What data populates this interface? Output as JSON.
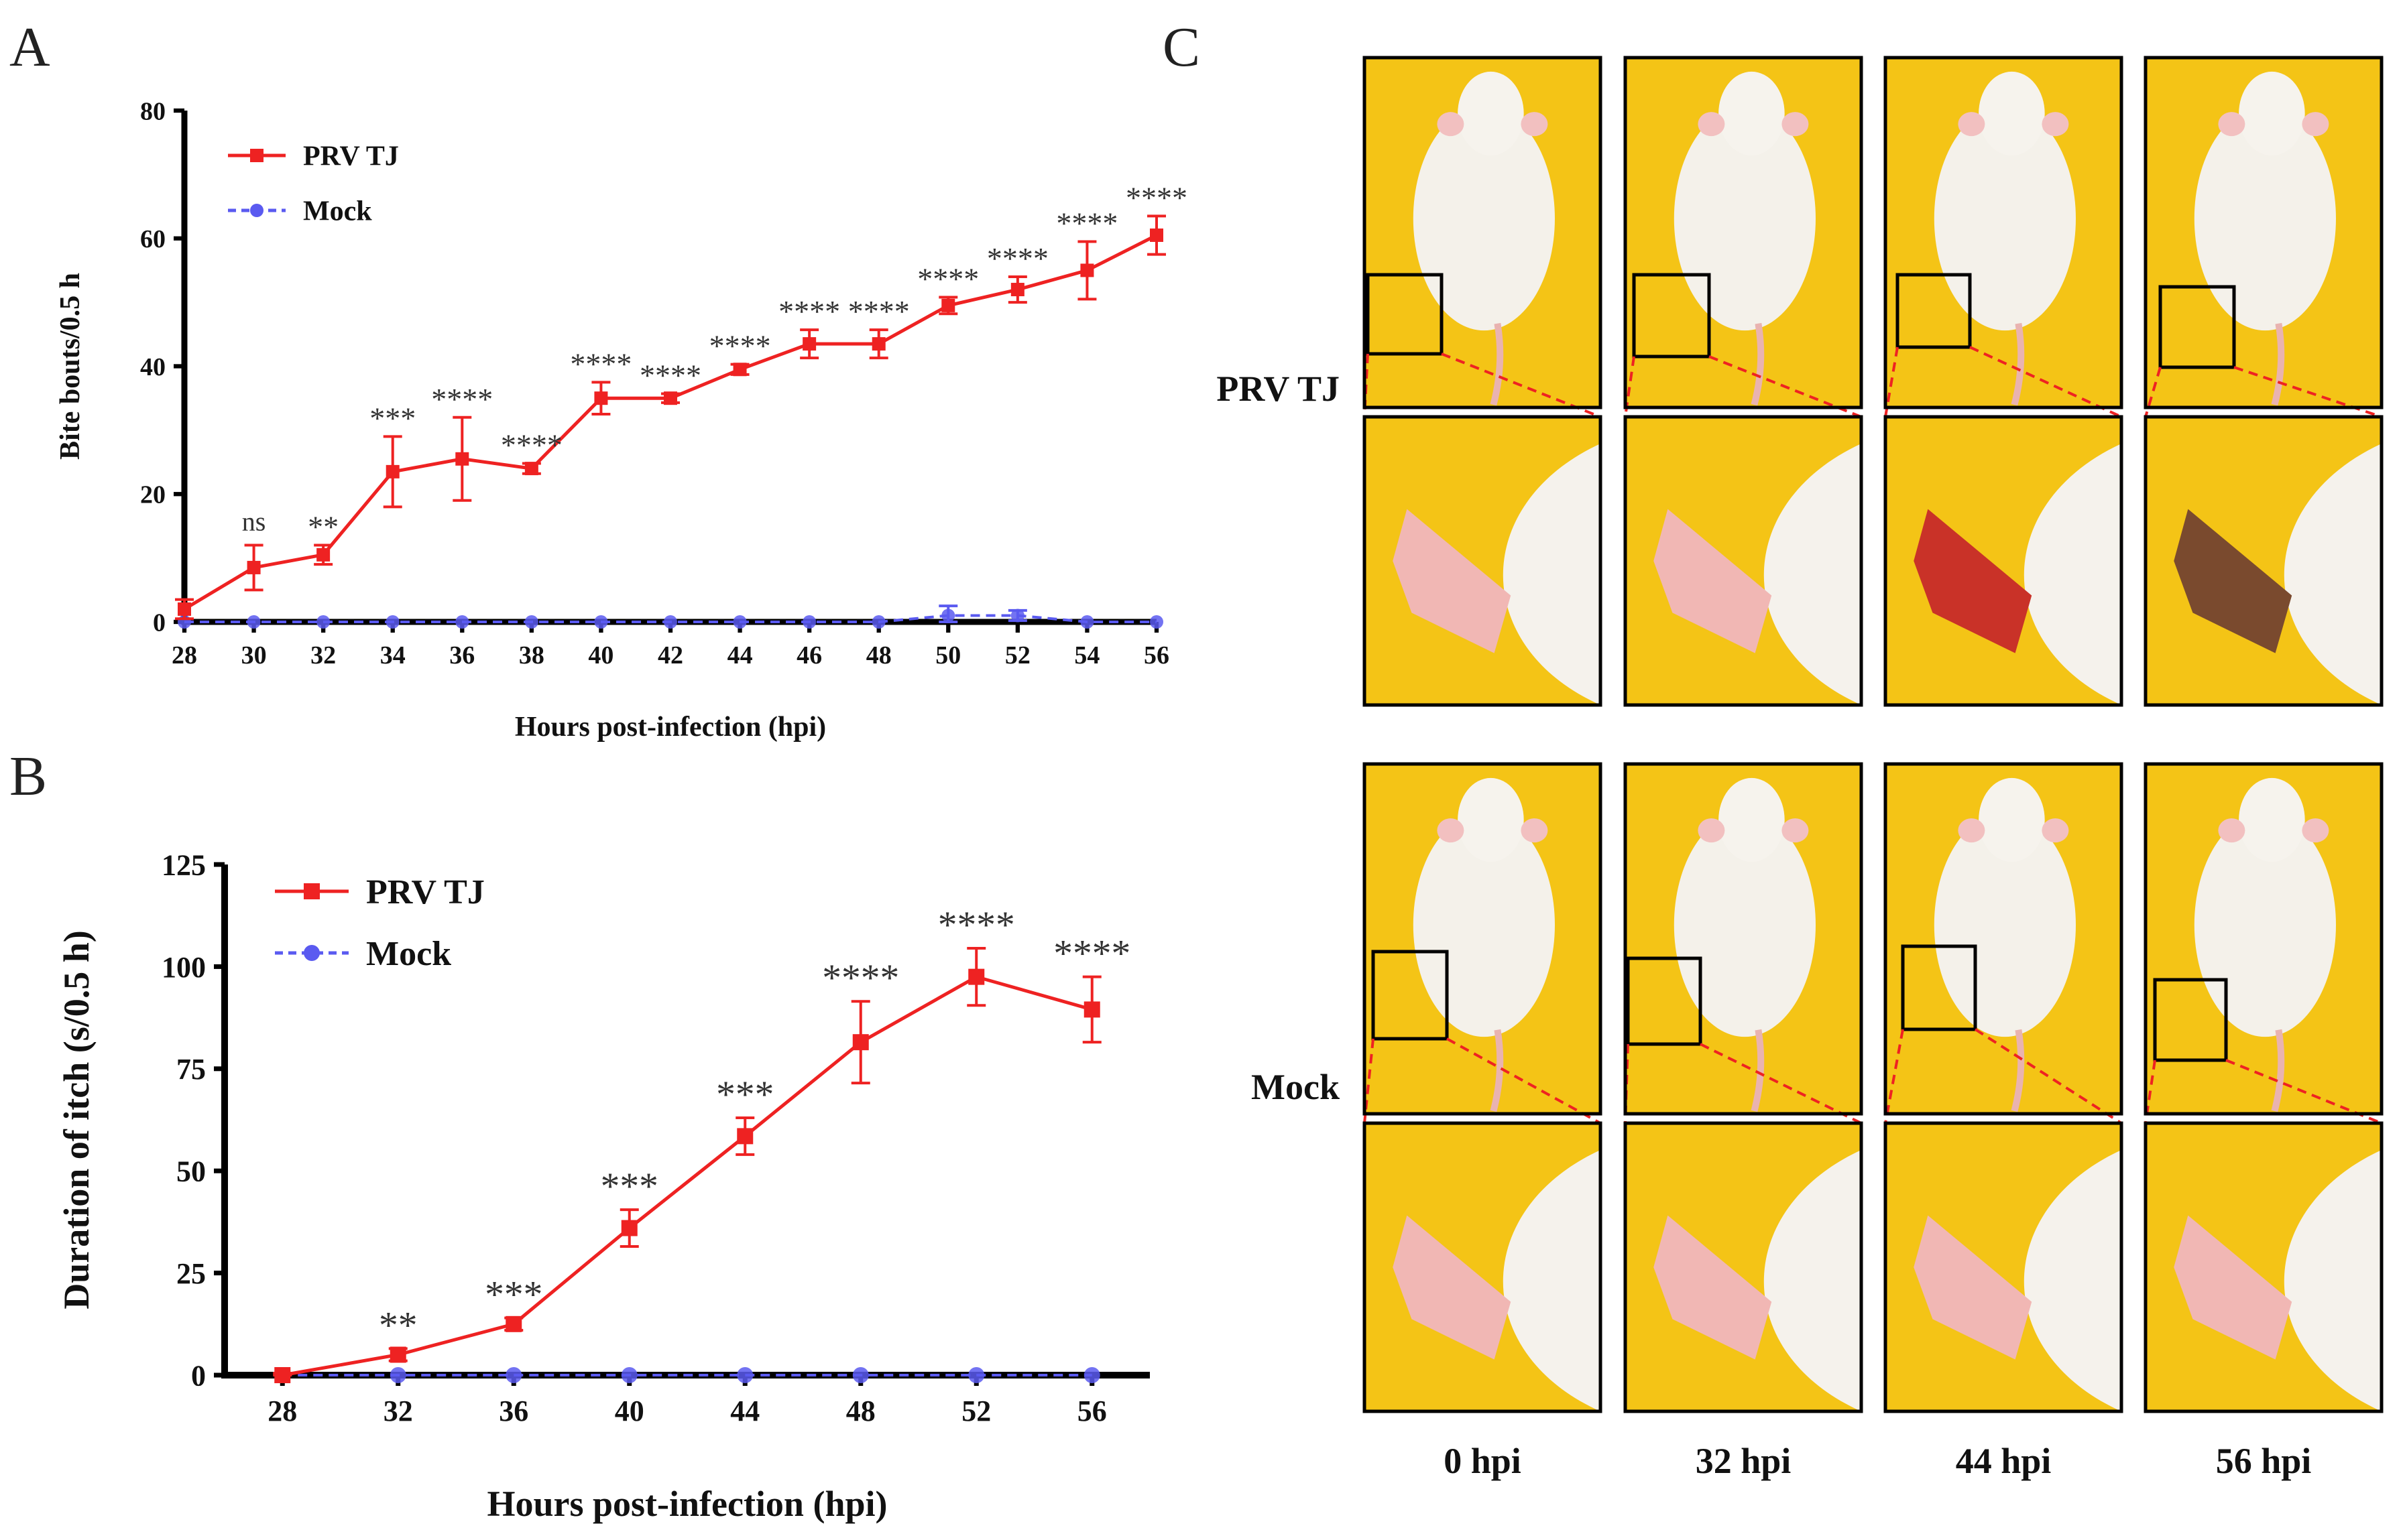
{
  "panels": {
    "a": "A",
    "b": "B",
    "c": "C"
  },
  "colors": {
    "prv": "#ee2222",
    "mock": "#5a5af0",
    "photo_bg": "#f4c416",
    "zoom_line": "#ee2222"
  },
  "chart_data": [
    {
      "id": "A",
      "type": "line",
      "xlabel": "Hours post-infection (hpi)",
      "ylabel": "Bite bouts/0.5 h",
      "xlim": [
        28,
        56
      ],
      "ylim": [
        0,
        80
      ],
      "x_ticks": [
        28,
        30,
        32,
        34,
        36,
        38,
        40,
        42,
        44,
        46,
        48,
        50,
        52,
        54,
        56
      ],
      "y_ticks": [
        0,
        20,
        40,
        60,
        80
      ],
      "legend_position": "top-left",
      "series": [
        {
          "name": "PRV TJ",
          "marker": "square",
          "x": [
            28,
            30,
            32,
            34,
            36,
            38,
            40,
            42,
            44,
            46,
            48,
            50,
            52,
            54,
            56
          ],
          "y": [
            2,
            8.5,
            10.5,
            23.5,
            25.5,
            24,
            35,
            35,
            39.5,
            43.5,
            43.5,
            49.5,
            52,
            55,
            60.5
          ],
          "err": [
            1.5,
            3.5,
            1.5,
            5.5,
            6.5,
            0.8,
            2.5,
            0.7,
            0.8,
            2.2,
            2.2,
            1.3,
            2,
            4.5,
            3
          ]
        },
        {
          "name": "Mock",
          "marker": "circle",
          "x": [
            28,
            30,
            32,
            34,
            36,
            38,
            40,
            42,
            44,
            46,
            48,
            50,
            52,
            54,
            56
          ],
          "y": [
            0,
            0,
            0,
            0,
            0,
            0,
            0,
            0,
            0,
            0,
            0,
            1,
            1,
            0,
            0
          ],
          "err": [
            0,
            0,
            0,
            0,
            0,
            0,
            0,
            0,
            0,
            0,
            0,
            1.5,
            0.8,
            0,
            0
          ]
        }
      ],
      "annotations": [
        {
          "x": 30,
          "text": "ns"
        },
        {
          "x": 32,
          "text": "**"
        },
        {
          "x": 34,
          "text": "***"
        },
        {
          "x": 36,
          "text": "****"
        },
        {
          "x": 38,
          "text": "****"
        },
        {
          "x": 40,
          "text": "****"
        },
        {
          "x": 42,
          "text": "****"
        },
        {
          "x": 44,
          "text": "****"
        },
        {
          "x": 46,
          "text": "****"
        },
        {
          "x": 48,
          "text": "****"
        },
        {
          "x": 50,
          "text": "****"
        },
        {
          "x": 52,
          "text": "****"
        },
        {
          "x": 54,
          "text": "****"
        },
        {
          "x": 56,
          "text": "****"
        }
      ]
    },
    {
      "id": "B",
      "type": "line",
      "xlabel": "Hours post-infection (hpi)",
      "ylabel": "Duration of itch (s/0.5 h)",
      "xlim": [
        26,
        58
      ],
      "ylim": [
        0,
        125
      ],
      "x_ticks": [
        28,
        32,
        36,
        40,
        44,
        48,
        52,
        56
      ],
      "y_ticks": [
        0,
        25,
        50,
        75,
        100,
        125
      ],
      "legend_position": "top-left",
      "series": [
        {
          "name": "PRV TJ",
          "marker": "square",
          "x": [
            28,
            32,
            36,
            40,
            44,
            48,
            52,
            56
          ],
          "y": [
            0,
            5,
            12.5,
            36,
            58.5,
            81.5,
            97.5,
            89.5
          ],
          "err": [
            0.5,
            1.5,
            1.5,
            4.5,
            4.5,
            10,
            7,
            8
          ]
        },
        {
          "name": "Mock",
          "marker": "circle",
          "x": [
            28,
            32,
            36,
            40,
            44,
            48,
            52,
            56
          ],
          "y": [
            0,
            0,
            0,
            0,
            0,
            0,
            0,
            0
          ],
          "err": [
            0,
            0,
            0,
            0,
            0,
            0,
            0,
            0
          ]
        }
      ],
      "annotations": [
        {
          "x": 32,
          "text": "**"
        },
        {
          "x": 36,
          "text": "***"
        },
        {
          "x": 40,
          "text": "***"
        },
        {
          "x": 44,
          "text": "***"
        },
        {
          "x": 48,
          "text": "****"
        },
        {
          "x": 52,
          "text": "****"
        },
        {
          "x": 56,
          "text": "****"
        }
      ]
    }
  ],
  "photo_panel": {
    "row_labels": [
      "PRV TJ",
      "Mock"
    ],
    "column_labels": [
      "0 hpi",
      "32 hpi",
      "44 hpi",
      "56 hpi"
    ]
  }
}
